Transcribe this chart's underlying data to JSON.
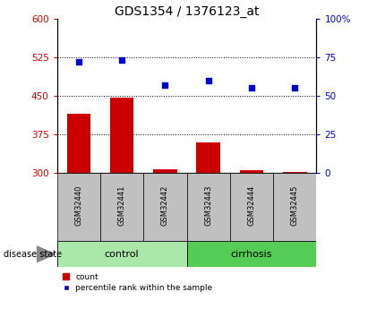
{
  "title": "GDS1354 / 1376123_at",
  "samples": [
    "GSM32440",
    "GSM32441",
    "GSM32442",
    "GSM32443",
    "GSM32444",
    "GSM32445"
  ],
  "bar_values": [
    415,
    447,
    307,
    360,
    305,
    302
  ],
  "scatter_values": [
    72,
    73,
    57,
    60,
    55,
    55
  ],
  "bar_baseline": 300,
  "ylim_left": [
    300,
    600
  ],
  "ylim_right": [
    0,
    100
  ],
  "yticks_left": [
    300,
    375,
    450,
    525,
    600
  ],
  "yticks_right": [
    0,
    25,
    50,
    75,
    100
  ],
  "ytick_labels_left": [
    "300",
    "375",
    "450",
    "525",
    "600"
  ],
  "ytick_labels_right": [
    "0",
    "25",
    "50",
    "75",
    "100%"
  ],
  "bar_color": "#cc0000",
  "scatter_color": "#0000cc",
  "group_label_control": "control",
  "group_label_cirrhosis": "cirrhosis",
  "disease_state_label": "disease state",
  "legend_bar_label": "count",
  "legend_scatter_label": "percentile rank within the sample",
  "control_bg_color": "#aae8aa",
  "cirrhosis_bg_color": "#55cc55",
  "sample_box_color": "#c0c0c0",
  "dotted_lines": [
    375,
    450,
    525
  ],
  "title_fontsize": 10,
  "tick_fontsize": 7.5,
  "label_fontsize": 8
}
